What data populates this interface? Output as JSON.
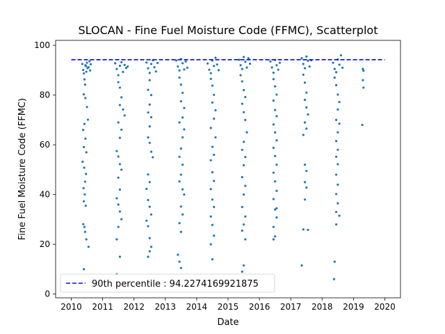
{
  "chart_data": {
    "type": "scatter",
    "title": "SLOCAN - Fine Fuel Moisture Code (FFMC), Scatterplot",
    "xlabel": "Date",
    "ylabel": "Fine Fuel Moisture Code (FFMC)",
    "xlim": [
      2009.5,
      2020.5
    ],
    "ylim": [
      -1.5,
      102
    ],
    "x_ticks": [
      "2010",
      "2011",
      "2012",
      "2013",
      "2014",
      "2015",
      "2016",
      "2017",
      "2018",
      "2019",
      "2020"
    ],
    "y_ticks": [
      "0",
      "20",
      "40",
      "60",
      "80",
      "100"
    ],
    "grid": false,
    "legend": {
      "placement": "lower-left",
      "entries": [
        "90th percentile : 94.2274169921875"
      ]
    },
    "reference_line": {
      "name": "90th percentile",
      "value": 94.2274169921875,
      "x_start": 2010.0,
      "x_end": 2020.0,
      "color": "#0000ff",
      "style": "dashed"
    },
    "series_color": "#1f77b4",
    "series": [
      {
        "points": [
          [
            2010.35,
            92.5
          ],
          [
            2010.38,
            90.1
          ],
          [
            2010.4,
            88.7
          ],
          [
            2010.42,
            86.3
          ],
          [
            2010.44,
            84.2
          ],
          [
            2010.45,
            92.0
          ],
          [
            2010.47,
            91.6
          ],
          [
            2010.48,
            89.4
          ],
          [
            2010.5,
            93.0
          ],
          [
            2010.52,
            90.8
          ],
          [
            2010.55,
            91.2
          ],
          [
            2010.58,
            93.6
          ],
          [
            2010.6,
            89.9
          ],
          [
            2010.62,
            92.4
          ],
          [
            2010.4,
            80.3
          ],
          [
            2010.45,
            78.8
          ],
          [
            2010.5,
            75.2
          ],
          [
            2010.53,
            70.1
          ],
          [
            2010.42,
            68.4
          ],
          [
            2010.38,
            66.0
          ],
          [
            2010.45,
            62.5
          ],
          [
            2010.4,
            59.1
          ],
          [
            2010.48,
            57.0
          ],
          [
            2010.36,
            53.2
          ],
          [
            2010.41,
            50.8
          ],
          [
            2010.47,
            48.3
          ],
          [
            2010.44,
            45.2
          ],
          [
            2010.39,
            42.6
          ],
          [
            2010.43,
            40.1
          ],
          [
            2010.4,
            37.3
          ],
          [
            2010.46,
            35.5
          ],
          [
            2010.38,
            28.1
          ],
          [
            2010.42,
            27.0
          ],
          [
            2010.44,
            25.0
          ],
          [
            2010.48,
            22.0
          ],
          [
            2010.55,
            19.0
          ],
          [
            2010.4,
            10.0
          ],
          [
            2011.4,
            92.8
          ],
          [
            2011.45,
            90.5
          ],
          [
            2011.5,
            88.0
          ],
          [
            2011.55,
            91.8
          ],
          [
            2011.6,
            93.2
          ],
          [
            2011.65,
            89.3
          ],
          [
            2011.7,
            92.1
          ],
          [
            2011.75,
            90.9
          ],
          [
            2011.8,
            91.5
          ],
          [
            2011.5,
            85.2
          ],
          [
            2011.55,
            83.0
          ],
          [
            2011.6,
            79.1
          ],
          [
            2011.55,
            76.0
          ],
          [
            2011.65,
            74.2
          ],
          [
            2011.7,
            71.8
          ],
          [
            2011.5,
            69.0
          ],
          [
            2011.6,
            66.1
          ],
          [
            2011.55,
            62.8
          ],
          [
            2011.45,
            57.5
          ],
          [
            2011.5,
            55.3
          ],
          [
            2011.55,
            52.2
          ],
          [
            2011.6,
            50.0
          ],
          [
            2011.5,
            46.8
          ],
          [
            2011.55,
            42.0
          ],
          [
            2011.45,
            38.5
          ],
          [
            2011.5,
            36.0
          ],
          [
            2011.55,
            33.2
          ],
          [
            2011.6,
            30.1
          ],
          [
            2011.5,
            27.0
          ],
          [
            2011.45,
            22.0
          ],
          [
            2011.55,
            15.0
          ],
          [
            2011.45,
            8.0
          ],
          [
            2012.4,
            93.1
          ],
          [
            2012.45,
            90.8
          ],
          [
            2012.5,
            88.9
          ],
          [
            2012.55,
            92.5
          ],
          [
            2012.6,
            94.0
          ],
          [
            2012.65,
            91.2
          ],
          [
            2012.7,
            89.5
          ],
          [
            2012.75,
            92.9
          ],
          [
            2012.5,
            86.0
          ],
          [
            2012.45,
            82.1
          ],
          [
            2012.55,
            80.0
          ],
          [
            2012.5,
            76.2
          ],
          [
            2012.45,
            73.0
          ],
          [
            2012.55,
            71.1
          ],
          [
            2012.5,
            67.4
          ],
          [
            2012.45,
            63.0
          ],
          [
            2012.5,
            60.8
          ],
          [
            2012.55,
            57.2
          ],
          [
            2012.6,
            55.0
          ],
          [
            2012.45,
            48.1
          ],
          [
            2012.5,
            45.0
          ],
          [
            2012.4,
            42.3
          ],
          [
            2012.45,
            37.8
          ],
          [
            2012.5,
            35.1
          ],
          [
            2012.55,
            32.0
          ],
          [
            2012.4,
            29.5
          ],
          [
            2012.45,
            27.3
          ],
          [
            2012.5,
            22.5
          ],
          [
            2012.55,
            19.0
          ],
          [
            2012.5,
            17.2
          ],
          [
            2012.45,
            15.0
          ],
          [
            2013.35,
            93.9
          ],
          [
            2013.4,
            91.5
          ],
          [
            2013.45,
            89.9
          ],
          [
            2013.5,
            94.5
          ],
          [
            2013.55,
            92.8
          ],
          [
            2013.6,
            90.3
          ],
          [
            2013.65,
            93.5
          ],
          [
            2013.7,
            91.0
          ],
          [
            2013.45,
            87.0
          ],
          [
            2013.5,
            84.2
          ],
          [
            2013.55,
            80.9
          ],
          [
            2013.5,
            77.5
          ],
          [
            2013.6,
            74.8
          ],
          [
            2013.55,
            71.0
          ],
          [
            2013.45,
            69.0
          ],
          [
            2013.6,
            66.2
          ],
          [
            2013.55,
            63.0
          ],
          [
            2013.5,
            58.5
          ],
          [
            2013.45,
            55.2
          ],
          [
            2013.55,
            52.0
          ],
          [
            2013.5,
            48.0
          ],
          [
            2013.45,
            45.3
          ],
          [
            2013.55,
            42.1
          ],
          [
            2013.6,
            40.0
          ],
          [
            2013.5,
            35.2
          ],
          [
            2013.55,
            32.0
          ],
          [
            2013.45,
            28.5
          ],
          [
            2013.5,
            25.0
          ],
          [
            2013.4,
            15.8
          ],
          [
            2013.45,
            13.0
          ],
          [
            2013.5,
            10.5
          ],
          [
            2014.35,
            92.7
          ],
          [
            2014.4,
            90.2
          ],
          [
            2014.45,
            88.8
          ],
          [
            2014.5,
            93.9
          ],
          [
            2014.55,
            91.7
          ],
          [
            2014.6,
            95.0
          ],
          [
            2014.65,
            92.3
          ],
          [
            2014.7,
            90.0
          ],
          [
            2014.45,
            86.5
          ],
          [
            2014.5,
            83.8
          ],
          [
            2014.55,
            80.1
          ],
          [
            2014.5,
            77.0
          ],
          [
            2014.6,
            73.9
          ],
          [
            2014.55,
            70.5
          ],
          [
            2014.45,
            66.8
          ],
          [
            2014.6,
            63.0
          ],
          [
            2014.5,
            59.2
          ],
          [
            2014.55,
            56.0
          ],
          [
            2014.45,
            53.8
          ],
          [
            2014.5,
            49.0
          ],
          [
            2014.55,
            45.5
          ],
          [
            2014.45,
            42.2
          ],
          [
            2014.5,
            38.0
          ],
          [
            2014.55,
            35.0
          ],
          [
            2014.45,
            31.2
          ],
          [
            2014.5,
            27.8
          ],
          [
            2014.55,
            23.5
          ],
          [
            2014.45,
            20.0
          ],
          [
            2014.5,
            14.0
          ],
          [
            2015.35,
            94.2
          ],
          [
            2015.4,
            92.0
          ],
          [
            2015.45,
            90.5
          ],
          [
            2015.5,
            95.3
          ],
          [
            2015.55,
            93.4
          ],
          [
            2015.6,
            91.1
          ],
          [
            2015.65,
            94.8
          ],
          [
            2015.7,
            92.6
          ],
          [
            2015.4,
            88.0
          ],
          [
            2015.45,
            85.5
          ],
          [
            2015.5,
            82.0
          ],
          [
            2015.55,
            79.2
          ],
          [
            2015.45,
            76.5
          ],
          [
            2015.5,
            73.1
          ],
          [
            2015.55,
            70.0
          ],
          [
            2015.6,
            65.0
          ],
          [
            2015.5,
            61.2
          ],
          [
            2015.45,
            58.0
          ],
          [
            2015.55,
            55.1
          ],
          [
            2015.5,
            51.8
          ],
          [
            2015.45,
            47.0
          ],
          [
            2015.55,
            43.5
          ],
          [
            2015.5,
            40.0
          ],
          [
            2015.45,
            35.0
          ],
          [
            2015.55,
            31.2
          ],
          [
            2015.5,
            28.0
          ],
          [
            2015.45,
            25.5
          ],
          [
            2015.55,
            22.0
          ],
          [
            2015.5,
            11.5
          ],
          [
            2015.45,
            9.0
          ],
          [
            2016.35,
            93.5
          ],
          [
            2016.4,
            91.1
          ],
          [
            2016.45,
            89.0
          ],
          [
            2016.5,
            94.1
          ],
          [
            2016.55,
            92.0
          ],
          [
            2016.6,
            90.2
          ],
          [
            2016.65,
            93.0
          ],
          [
            2016.45,
            86.4
          ],
          [
            2016.5,
            83.5
          ],
          [
            2016.55,
            80.2
          ],
          [
            2016.45,
            77.8
          ],
          [
            2016.5,
            74.0
          ],
          [
            2016.55,
            71.5
          ],
          [
            2016.45,
            68.2
          ],
          [
            2016.5,
            65.0
          ],
          [
            2016.55,
            61.8
          ],
          [
            2016.45,
            58.8
          ],
          [
            2016.5,
            55.5
          ],
          [
            2016.55,
            52.0
          ],
          [
            2016.45,
            48.8
          ],
          [
            2016.5,
            45.3
          ],
          [
            2016.55,
            41.5
          ],
          [
            2016.45,
            38.2
          ],
          [
            2016.5,
            34.0
          ],
          [
            2016.55,
            30.8
          ],
          [
            2016.45,
            27.0
          ],
          [
            2016.5,
            23.2
          ],
          [
            2016.45,
            22.0
          ],
          [
            2016.55,
            34.5
          ],
          [
            2017.35,
            94.8
          ],
          [
            2017.4,
            92.5
          ],
          [
            2017.45,
            90.8
          ],
          [
            2017.5,
            95.5
          ],
          [
            2017.55,
            93.8
          ],
          [
            2017.6,
            91.5
          ],
          [
            2017.65,
            94.0
          ],
          [
            2017.4,
            88.2
          ],
          [
            2017.45,
            85.0
          ],
          [
            2017.5,
            81.0
          ],
          [
            2017.45,
            78.1
          ],
          [
            2017.5,
            75.0
          ],
          [
            2017.55,
            72.2
          ],
          [
            2017.45,
            69.0
          ],
          [
            2017.5,
            66.5
          ],
          [
            2017.4,
            64.0
          ],
          [
            2017.45,
            52.0
          ],
          [
            2017.5,
            49.5
          ],
          [
            2017.45,
            45.0
          ],
          [
            2017.5,
            42.8
          ],
          [
            2017.45,
            38.0
          ],
          [
            2017.4,
            26.0
          ],
          [
            2017.55,
            25.8
          ],
          [
            2017.35,
            11.5
          ],
          [
            2018.35,
            93.0
          ],
          [
            2018.4,
            90.5
          ],
          [
            2018.45,
            89.2
          ],
          [
            2018.5,
            94.3
          ],
          [
            2018.55,
            92.2
          ],
          [
            2018.6,
            96.0
          ],
          [
            2018.65,
            91.0
          ],
          [
            2018.4,
            87.0
          ],
          [
            2018.45,
            84.0
          ],
          [
            2018.5,
            80.2
          ],
          [
            2018.55,
            77.2
          ],
          [
            2018.5,
            74.2
          ],
          [
            2018.45,
            70.0
          ],
          [
            2018.55,
            68.5
          ],
          [
            2018.5,
            65.0
          ],
          [
            2018.45,
            61.5
          ],
          [
            2018.5,
            58.0
          ],
          [
            2018.45,
            55.2
          ],
          [
            2018.5,
            52.2
          ],
          [
            2018.45,
            48.0
          ],
          [
            2018.5,
            44.0
          ],
          [
            2018.45,
            40.2
          ],
          [
            2018.5,
            36.5
          ],
          [
            2018.45,
            33.0
          ],
          [
            2018.55,
            31.5
          ],
          [
            2018.45,
            28.0
          ],
          [
            2018.4,
            13.0
          ],
          [
            2018.38,
            6.0
          ],
          [
            2019.3,
            90.5
          ],
          [
            2019.32,
            89.8
          ],
          [
            2019.3,
            86.0
          ],
          [
            2019.32,
            83.0
          ],
          [
            2019.28,
            68.0
          ]
        ]
      }
    ]
  }
}
